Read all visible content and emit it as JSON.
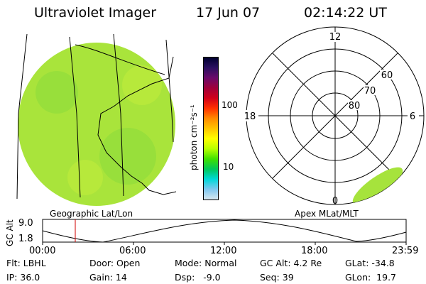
{
  "header": {
    "instrument": "Ultraviolet Imager",
    "date": "17 Jun 07",
    "time": "02:14:22 UT"
  },
  "colorbar": {
    "unit_label": "photon cm⁻²s⁻¹",
    "tick_labels": [
      "100",
      "10"
    ],
    "colors": [
      "#000030",
      "#2a1060",
      "#6a0a6a",
      "#a0003a",
      "#d0001a",
      "#ff3000",
      "#ff8a00",
      "#ffc400",
      "#ffff00",
      "#b8ff00",
      "#40e000",
      "#00c85a",
      "#00d8d8",
      "#80c8f0",
      "#d8e8f0"
    ]
  },
  "globe_map": {
    "label": "Geographic Lat/Lon",
    "fill_color": "#a6e33c"
  },
  "polar_plot": {
    "label": "Apex MLat/MLT",
    "mlt_labels": {
      "top": "12",
      "left": "18",
      "right": "6",
      "bottom": "0"
    },
    "lat_labels": [
      "60",
      "70",
      "80"
    ]
  },
  "orbit_plot": {
    "ylabel": "GC Alt",
    "y_ticks": [
      "9.0",
      "1.8"
    ],
    "x_ticks": [
      "00:00",
      "06:00",
      "12:00",
      "18:00",
      "23:59"
    ],
    "marker_color": "#d00000"
  },
  "status": {
    "filter": "Flt: LBHL",
    "ip": "IP: 36.0",
    "door": "Door: Open",
    "gain": "Gain: 14",
    "mode": "Mode: Normal",
    "dsp": "Dsp:   -9.0",
    "gc_alt": "GC Alt: 4.2 Re",
    "seq": "Seq: 39",
    "glat": "GLat: -34.8",
    "glon": "GLon:  19.7"
  }
}
